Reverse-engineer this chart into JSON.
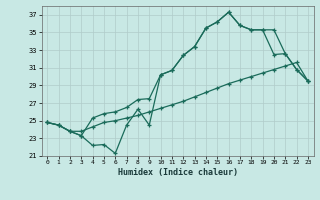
{
  "xlabel": "Humidex (Indice chaleur)",
  "background_color": "#c8e8e4",
  "grid_color": "#b0ccca",
  "line_color": "#1a6b5a",
  "xlim": [
    -0.5,
    23.5
  ],
  "ylim": [
    21,
    38
  ],
  "yticks": [
    21,
    23,
    25,
    27,
    29,
    31,
    33,
    35,
    37
  ],
  "xticks": [
    0,
    1,
    2,
    3,
    4,
    5,
    6,
    7,
    8,
    9,
    10,
    11,
    12,
    13,
    14,
    15,
    16,
    17,
    18,
    19,
    20,
    21,
    22,
    23
  ],
  "curve1_x": [
    0,
    1,
    2,
    3,
    4,
    5,
    6,
    7,
    8,
    9,
    10,
    11,
    12,
    13,
    14,
    15,
    16,
    17,
    18,
    19,
    20,
    21,
    22,
    23
  ],
  "curve1_y": [
    24.8,
    24.5,
    23.8,
    23.3,
    22.2,
    22.3,
    21.3,
    24.5,
    26.3,
    24.5,
    30.2,
    30.7,
    32.4,
    33.4,
    35.5,
    36.2,
    37.3,
    35.8,
    35.3,
    35.3,
    32.5,
    32.6,
    30.8,
    29.5
  ],
  "curve2_x": [
    0,
    1,
    2,
    3,
    4,
    5,
    6,
    7,
    8,
    9,
    10,
    11,
    12,
    13,
    14,
    15,
    16,
    17,
    18,
    19,
    20,
    21,
    22,
    23
  ],
  "curve2_y": [
    24.8,
    24.5,
    23.8,
    23.3,
    25.3,
    25.8,
    26.0,
    26.5,
    27.4,
    27.5,
    30.2,
    30.7,
    32.4,
    33.4,
    35.5,
    36.2,
    37.3,
    35.8,
    35.3,
    35.3,
    35.3,
    32.6,
    30.8,
    29.5
  ],
  "curve3_x": [
    0,
    1,
    2,
    3,
    4,
    5,
    6,
    7,
    8,
    9,
    10,
    11,
    12,
    13,
    14,
    15,
    16,
    17,
    18,
    19,
    20,
    21,
    22,
    23
  ],
  "curve3_y": [
    24.8,
    24.5,
    23.8,
    23.8,
    24.3,
    24.8,
    25.0,
    25.3,
    25.6,
    26.0,
    26.4,
    26.8,
    27.2,
    27.7,
    28.2,
    28.7,
    29.2,
    29.6,
    30.0,
    30.4,
    30.8,
    31.2,
    31.6,
    29.5
  ]
}
